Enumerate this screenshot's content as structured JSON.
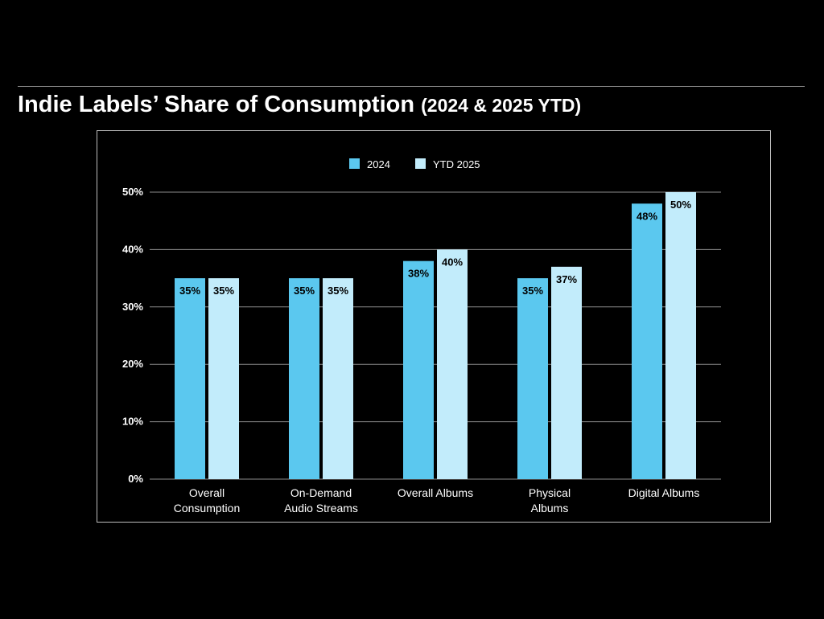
{
  "title": {
    "main": "Indie Labels’ Share of Consumption",
    "sub": "(2024 & 2025 YTD)"
  },
  "colors": {
    "background": "#000000",
    "series_2024": "#5bc8ef",
    "series_2025": "#c2ecfb",
    "text": "#ffffff",
    "data_label": "#000000",
    "grid": "#8c8c8c"
  },
  "chart_data": {
    "type": "bar",
    "title": "",
    "xlabel": "",
    "ylabel": "",
    "ylim": [
      0,
      50
    ],
    "yticks": [
      0,
      10,
      20,
      30,
      40,
      50
    ],
    "ytick_labels": [
      "0%",
      "10%",
      "20%",
      "30%",
      "40%",
      "50%"
    ],
    "grid": true,
    "legend_position": "top-center",
    "categories": [
      [
        "Overall",
        "Consumption"
      ],
      [
        "On-Demand",
        "Audio Streams"
      ],
      [
        "Overall Albums"
      ],
      [
        "Physical",
        "Albums"
      ],
      [
        "Digital Albums"
      ]
    ],
    "series": [
      {
        "name": "2024",
        "color": "#5bc8ef",
        "values": [
          35,
          35,
          38,
          35,
          48
        ],
        "labels": [
          "35%",
          "35%",
          "38%",
          "35%",
          "48%"
        ]
      },
      {
        "name": "YTD 2025",
        "color": "#c2ecfb",
        "values": [
          35,
          35,
          40,
          37,
          50
        ],
        "labels": [
          "35%",
          "35%",
          "40%",
          "37%",
          "50%"
        ]
      }
    ]
  }
}
